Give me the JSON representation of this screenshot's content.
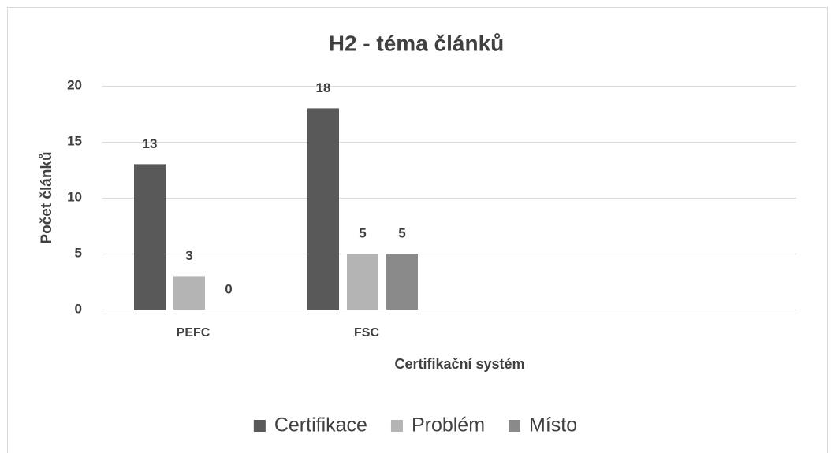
{
  "chart_data": {
    "type": "bar",
    "title": "H2 - téma článků",
    "x_label": "Certifikační systém",
    "y_label": "Počet článků",
    "categories": [
      "PEFC",
      "FSC",
      null,
      null
    ],
    "series": [
      {
        "name": "Certifikace",
        "color": "#595959",
        "values": [
          13,
          18,
          null,
          null
        ]
      },
      {
        "name": "Problém",
        "color": "#b4b4b4",
        "values": [
          3,
          5,
          null,
          null
        ]
      },
      {
        "name": "Místo",
        "color": "#8a8a8a",
        "values": [
          0,
          5,
          null,
          null
        ]
      }
    ],
    "ylim": [
      0,
      20
    ],
    "yticks": [
      0,
      5,
      10,
      15,
      20
    ],
    "grid": true,
    "legend": "bottom"
  }
}
